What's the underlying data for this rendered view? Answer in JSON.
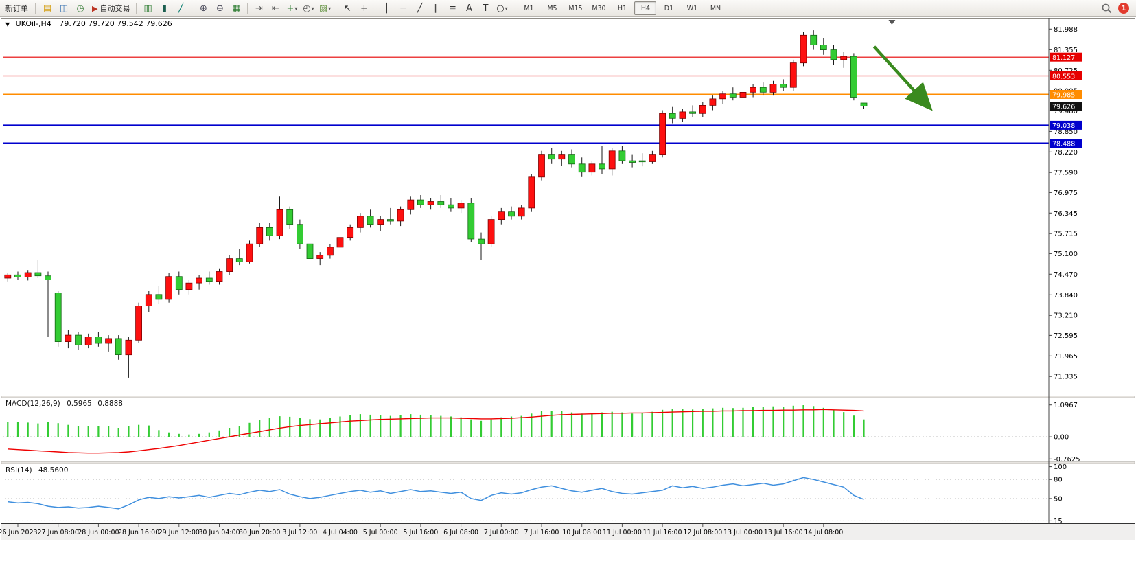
{
  "toolbar": {
    "new_order_label": "新订单",
    "auto_trading_label": "自动交易",
    "notification_count": "1",
    "tools": [
      {
        "name": "charts-stack-icon",
        "glyph": "▤",
        "color": "#d4a017"
      },
      {
        "name": "profiles-icon",
        "glyph": "◫",
        "color": "#3b74b3"
      },
      {
        "name": "data-window-icon",
        "glyph": "◷",
        "color": "#4d8a4d"
      },
      {
        "name": "auto-trading-button",
        "glyph": "▶",
        "color": "#bb3322",
        "label_key": "auto_trading_label"
      },
      {
        "sep": true
      },
      {
        "name": "bar-chart-icon",
        "glyph": "▥",
        "color": "#2e7d32"
      },
      {
        "name": "candlestick-chart-icon",
        "glyph": "▮",
        "color": "#1b5e4f"
      },
      {
        "name": "line-chart-icon",
        "glyph": "╱",
        "color": "#00796b"
      },
      {
        "sep": true
      },
      {
        "name": "zoom-in-icon",
        "glyph": "⊕",
        "color": "#445"
      },
      {
        "name": "zoom-out-icon",
        "glyph": "⊖",
        "color": "#445"
      },
      {
        "name": "tile-windows-icon",
        "glyph": "▦",
        "color": "#2e7d32"
      },
      {
        "sep": true
      },
      {
        "name": "auto-scroll-icon",
        "glyph": "⇥",
        "color": "#555"
      },
      {
        "name": "chart-shift-icon",
        "glyph": "⇤",
        "color": "#555"
      },
      {
        "name": "indicators-icon",
        "glyph": "+",
        "color": "#2e7d32",
        "dropdown": true
      },
      {
        "name": "periods-icon",
        "glyph": "◴",
        "color": "#555",
        "dropdown": true
      },
      {
        "name": "templates-icon",
        "glyph": "▨",
        "color": "#6f9a4f",
        "dropdown": true
      },
      {
        "sep": true
      },
      {
        "name": "cursor-icon",
        "glyph": "↖",
        "color": "#333"
      },
      {
        "name": "crosshair-icon",
        "glyph": "+",
        "color": "#333"
      },
      {
        "sep": true
      },
      {
        "name": "vertical-line-icon",
        "glyph": "│",
        "color": "#333"
      },
      {
        "name": "horizontal-line-icon",
        "glyph": "─",
        "color": "#333"
      },
      {
        "name": "trendline-icon",
        "glyph": "╱",
        "color": "#333"
      },
      {
        "name": "channel-icon",
        "glyph": "∥",
        "color": "#333"
      },
      {
        "name": "fibonacci-icon",
        "glyph": "≡",
        "color": "#333"
      },
      {
        "name": "text-icon",
        "glyph": "A",
        "color": "#333"
      },
      {
        "name": "label-icon",
        "glyph": "T",
        "color": "#333"
      },
      {
        "name": "shapes-icon",
        "glyph": "○",
        "color": "#333",
        "dropdown": true
      },
      {
        "sep": true
      }
    ],
    "timeframes": {
      "items": [
        "M1",
        "M5",
        "M15",
        "M30",
        "H1",
        "H4",
        "D1",
        "W1",
        "MN"
      ],
      "active": "H4"
    }
  },
  "chart_header": {
    "collapse": "▼",
    "symbol_period": "UKOil-,H4",
    "ohlc": "79.720 79.720 79.542 79.626"
  },
  "macd": {
    "label": "MACD(12,26,9)",
    "value_main": "0.5965",
    "value_signal": "0.8888"
  },
  "rsi": {
    "label": "RSI(14)",
    "value": "48.5600"
  },
  "chart_data": {
    "type": "candlestick",
    "symbol": "UKOil-",
    "timeframe": "H4",
    "current_price": 79.626,
    "ohlc_display": [
      79.72,
      79.72,
      79.542,
      79.626
    ],
    "ylim": [
      70.75,
      82.29
    ],
    "candles_span": 0.828,
    "up_color": "#fe1010",
    "down_color": "#33cc33",
    "price_axis_labels": [
      "81.988",
      "81.355",
      "80.725",
      "80.095",
      "79.480",
      "78.850",
      "78.220",
      "77.590",
      "76.975",
      "76.345",
      "75.715",
      "75.100",
      "74.470",
      "73.840",
      "73.210",
      "72.595",
      "71.965",
      "71.335"
    ],
    "hlines": [
      {
        "price": 81.127,
        "color": "#e60000",
        "tag": "81.127",
        "width": 1.2
      },
      {
        "price": 80.553,
        "color": "#e60000",
        "tag": "80.553",
        "width": 1.2
      },
      {
        "price": 79.985,
        "color": "#ff8c00",
        "tag": "79.985",
        "width": 2
      },
      {
        "price": 79.626,
        "color": "#111111",
        "tag": "79.626",
        "width": 1
      },
      {
        "price": 79.038,
        "color": "#0000cd",
        "tag": "79.038",
        "width": 2
      },
      {
        "price": 78.488,
        "color": "#0000cd",
        "tag": "78.488",
        "width": 2
      }
    ],
    "time_labels": [
      "26 Jun 2023",
      "27 Jun 08:00",
      "28 Jun 00:00",
      "28 Jun 16:00",
      "29 Jun 12:00",
      "30 Jun 04:00",
      "30 Jun 20:00",
      "3 Jul 12:00",
      "4 Jul 04:00",
      "5 Jul 00:00",
      "5 Jul 16:00",
      "6 Jul 08:00",
      "7 Jul 00:00",
      "7 Jul 16:00",
      "10 Jul 08:00",
      "11 Jul 00:00",
      "11 Jul 16:00",
      "12 Jul 08:00",
      "13 Jul 00:00",
      "13 Jul 16:00",
      "14 Jul 08:00"
    ],
    "first_label_index": 1,
    "label_step": 4,
    "candles": [
      [
        74.35,
        74.5,
        74.25,
        74.45
      ],
      [
        74.45,
        74.55,
        74.3,
        74.38
      ],
      [
        74.38,
        74.6,
        74.28,
        74.52
      ],
      [
        74.52,
        74.9,
        74.35,
        74.42
      ],
      [
        74.42,
        74.55,
        72.55,
        74.3
      ],
      [
        73.9,
        73.95,
        72.25,
        72.4
      ],
      [
        72.4,
        72.75,
        72.2,
        72.6
      ],
      [
        72.6,
        72.7,
        72.15,
        72.3
      ],
      [
        72.3,
        72.65,
        72.2,
        72.55
      ],
      [
        72.55,
        72.7,
        72.25,
        72.35
      ],
      [
        72.35,
        72.6,
        72.1,
        72.5
      ],
      [
        72.5,
        72.6,
        71.85,
        72.0
      ],
      [
        72.0,
        72.55,
        71.3,
        72.45
      ],
      [
        72.45,
        73.6,
        72.35,
        73.5
      ],
      [
        73.5,
        73.95,
        73.3,
        73.85
      ],
      [
        73.85,
        74.1,
        73.55,
        73.7
      ],
      [
        73.7,
        74.5,
        73.6,
        74.4
      ],
      [
        74.4,
        74.55,
        73.85,
        74.0
      ],
      [
        74.0,
        74.3,
        73.85,
        74.2
      ],
      [
        74.2,
        74.45,
        74.0,
        74.35
      ],
      [
        74.35,
        74.55,
        74.15,
        74.25
      ],
      [
        74.25,
        74.65,
        74.15,
        74.55
      ],
      [
        74.55,
        75.05,
        74.45,
        74.95
      ],
      [
        74.95,
        75.25,
        74.75,
        74.85
      ],
      [
        74.85,
        75.5,
        74.8,
        75.4
      ],
      [
        75.4,
        76.05,
        75.3,
        75.9
      ],
      [
        75.9,
        76.05,
        75.5,
        75.65
      ],
      [
        75.65,
        76.85,
        75.55,
        76.45
      ],
      [
        76.45,
        76.55,
        75.85,
        76.0
      ],
      [
        76.0,
        76.15,
        75.25,
        75.4
      ],
      [
        75.4,
        75.55,
        74.8,
        74.95
      ],
      [
        74.95,
        75.15,
        74.75,
        75.05
      ],
      [
        75.05,
        75.4,
        74.95,
        75.3
      ],
      [
        75.3,
        75.7,
        75.2,
        75.6
      ],
      [
        75.6,
        76.0,
        75.5,
        75.9
      ],
      [
        75.9,
        76.35,
        75.75,
        76.25
      ],
      [
        76.25,
        76.45,
        75.9,
        76.0
      ],
      [
        76.0,
        76.25,
        75.8,
        76.15
      ],
      [
        76.15,
        76.5,
        76.0,
        76.1
      ],
      [
        76.1,
        76.55,
        75.95,
        76.45
      ],
      [
        76.45,
        76.85,
        76.3,
        76.75
      ],
      [
        76.75,
        76.9,
        76.5,
        76.6
      ],
      [
        76.6,
        76.8,
        76.45,
        76.7
      ],
      [
        76.7,
        76.9,
        76.5,
        76.6
      ],
      [
        76.6,
        76.8,
        76.4,
        76.5
      ],
      [
        76.5,
        76.75,
        76.35,
        76.65
      ],
      [
        76.65,
        76.8,
        75.45,
        75.55
      ],
      [
        75.55,
        75.75,
        74.9,
        75.4
      ],
      [
        75.4,
        76.25,
        75.3,
        76.15
      ],
      [
        76.15,
        76.5,
        76.0,
        76.4
      ],
      [
        76.4,
        76.55,
        76.15,
        76.25
      ],
      [
        76.25,
        76.6,
        76.15,
        76.5
      ],
      [
        76.5,
        77.55,
        76.4,
        77.45
      ],
      [
        77.45,
        78.25,
        77.35,
        78.15
      ],
      [
        78.15,
        78.35,
        77.85,
        78.0
      ],
      [
        78.0,
        78.25,
        77.8,
        78.15
      ],
      [
        78.15,
        78.3,
        77.75,
        77.85
      ],
      [
        77.85,
        78.05,
        77.45,
        77.6
      ],
      [
        77.6,
        77.95,
        77.5,
        77.85
      ],
      [
        77.85,
        78.4,
        77.55,
        77.7
      ],
      [
        77.7,
        78.35,
        77.5,
        78.25
      ],
      [
        78.25,
        78.4,
        77.85,
        77.95
      ],
      [
        77.95,
        78.15,
        77.75,
        77.9
      ],
      [
        77.95,
        78.18,
        77.78,
        77.92
      ],
      [
        77.92,
        78.25,
        77.85,
        78.15
      ],
      [
        78.15,
        79.5,
        78.05,
        79.4
      ],
      [
        79.4,
        79.6,
        79.1,
        79.25
      ],
      [
        79.25,
        79.55,
        79.15,
        79.45
      ],
      [
        79.45,
        79.65,
        79.3,
        79.4
      ],
      [
        79.4,
        79.75,
        79.3,
        79.65
      ],
      [
        79.65,
        79.95,
        79.5,
        79.85
      ],
      [
        79.85,
        80.1,
        79.7,
        80.0
      ],
      [
        80.0,
        80.2,
        79.8,
        79.9
      ],
      [
        79.9,
        80.15,
        79.75,
        80.05
      ],
      [
        80.05,
        80.3,
        79.9,
        80.2
      ],
      [
        80.2,
        80.35,
        79.95,
        80.05
      ],
      [
        80.05,
        80.4,
        79.95,
        80.3
      ],
      [
        80.3,
        80.45,
        80.1,
        80.2
      ],
      [
        80.2,
        81.05,
        80.1,
        80.95
      ],
      [
        80.95,
        81.9,
        80.85,
        81.8
      ],
      [
        81.8,
        81.95,
        81.35,
        81.5
      ],
      [
        81.5,
        81.7,
        81.2,
        81.35
      ],
      [
        81.35,
        81.5,
        80.9,
        81.05
      ],
      [
        81.05,
        81.3,
        80.8,
        81.15
      ],
      [
        81.15,
        81.25,
        79.8,
        79.9
      ],
      [
        79.72,
        79.72,
        79.542,
        79.626
      ]
    ],
    "macd": {
      "label": "MACD(12,26,9)",
      "value_main": 0.5965,
      "value_signal": 0.8888,
      "range": [
        -0.85,
        1.35
      ],
      "hist_color": "#33cc33",
      "signal_color": "#ee0000",
      "scale": [
        {
          "text": "1.0967",
          "value": 1.0967
        },
        {
          "text": "0.00",
          "value": 0
        },
        {
          "text": "-0.7625",
          "value": -0.7625
        }
      ],
      "histogram": [
        0.5,
        0.52,
        0.49,
        0.46,
        0.5,
        0.47,
        0.41,
        0.38,
        0.36,
        0.38,
        0.36,
        0.31,
        0.36,
        0.41,
        0.39,
        0.23,
        0.15,
        0.1,
        0.08,
        0.1,
        0.15,
        0.22,
        0.31,
        0.38,
        0.48,
        0.58,
        0.64,
        0.71,
        0.69,
        0.66,
        0.61,
        0.6,
        0.64,
        0.7,
        0.74,
        0.78,
        0.76,
        0.74,
        0.72,
        0.74,
        0.78,
        0.76,
        0.74,
        0.72,
        0.7,
        0.67,
        0.6,
        0.55,
        0.6,
        0.67,
        0.7,
        0.72,
        0.8,
        0.88,
        0.9,
        0.88,
        0.84,
        0.8,
        0.82,
        0.84,
        0.86,
        0.84,
        0.8,
        0.82,
        0.86,
        0.93,
        0.96,
        0.95,
        0.94,
        0.96,
        0.98,
        1.0,
        0.99,
        1.0,
        1.02,
        1.03,
        1.05,
        1.04,
        1.07,
        1.09,
        1.06,
        1.0,
        0.92,
        0.85,
        0.73,
        0.6
      ],
      "signal": [
        -0.42,
        -0.44,
        -0.46,
        -0.48,
        -0.5,
        -0.52,
        -0.54,
        -0.55,
        -0.56,
        -0.56,
        -0.55,
        -0.54,
        -0.52,
        -0.48,
        -0.44,
        -0.4,
        -0.35,
        -0.3,
        -0.24,
        -0.18,
        -0.12,
        -0.06,
        0.0,
        0.06,
        0.12,
        0.18,
        0.24,
        0.3,
        0.35,
        0.39,
        0.42,
        0.45,
        0.48,
        0.51,
        0.54,
        0.56,
        0.58,
        0.6,
        0.61,
        0.62,
        0.63,
        0.64,
        0.65,
        0.65,
        0.65,
        0.64,
        0.63,
        0.62,
        0.62,
        0.63,
        0.64,
        0.66,
        0.68,
        0.71,
        0.74,
        0.76,
        0.77,
        0.78,
        0.79,
        0.8,
        0.81,
        0.81,
        0.82,
        0.82,
        0.83,
        0.84,
        0.85,
        0.86,
        0.87,
        0.88,
        0.88,
        0.89,
        0.89,
        0.9,
        0.9,
        0.91,
        0.91,
        0.92,
        0.92,
        0.93,
        0.93,
        0.94,
        0.93,
        0.92,
        0.91,
        0.89
      ]
    },
    "rsi": {
      "label": "RSI(14)",
      "value": 48.56,
      "range": [
        10,
        105
      ],
      "color": "#3f8fde",
      "levels": [
        {
          "text": "100",
          "value": 100
        },
        {
          "text": "80",
          "value": 80
        },
        {
          "text": "50",
          "value": 50
        },
        {
          "text": "15",
          "value": 15
        }
      ],
      "values": [
        45,
        43,
        44,
        42,
        38,
        36,
        37,
        35,
        36,
        38,
        36,
        34,
        40,
        48,
        52,
        50,
        53,
        51,
        53,
        55,
        52,
        55,
        58,
        56,
        60,
        63,
        61,
        64,
        57,
        53,
        50,
        52,
        55,
        58,
        61,
        63,
        60,
        62,
        58,
        61,
        64,
        61,
        62,
        60,
        58,
        60,
        50,
        47,
        55,
        59,
        57,
        59,
        64,
        68,
        70,
        66,
        62,
        60,
        63,
        66,
        61,
        58,
        57,
        59,
        61,
        63,
        70,
        67,
        69,
        66,
        68,
        71,
        73,
        70,
        72,
        74,
        71,
        73,
        78,
        83,
        80,
        76,
        72,
        68,
        55,
        48.6
      ]
    },
    "annotation_arrow": {
      "x1_frac": 0.833,
      "y1_price": 81.45,
      "x2_frac": 0.885,
      "y2_price": 79.62,
      "color": "#3a8a1f"
    },
    "shift_marker_frac": 0.85
  }
}
